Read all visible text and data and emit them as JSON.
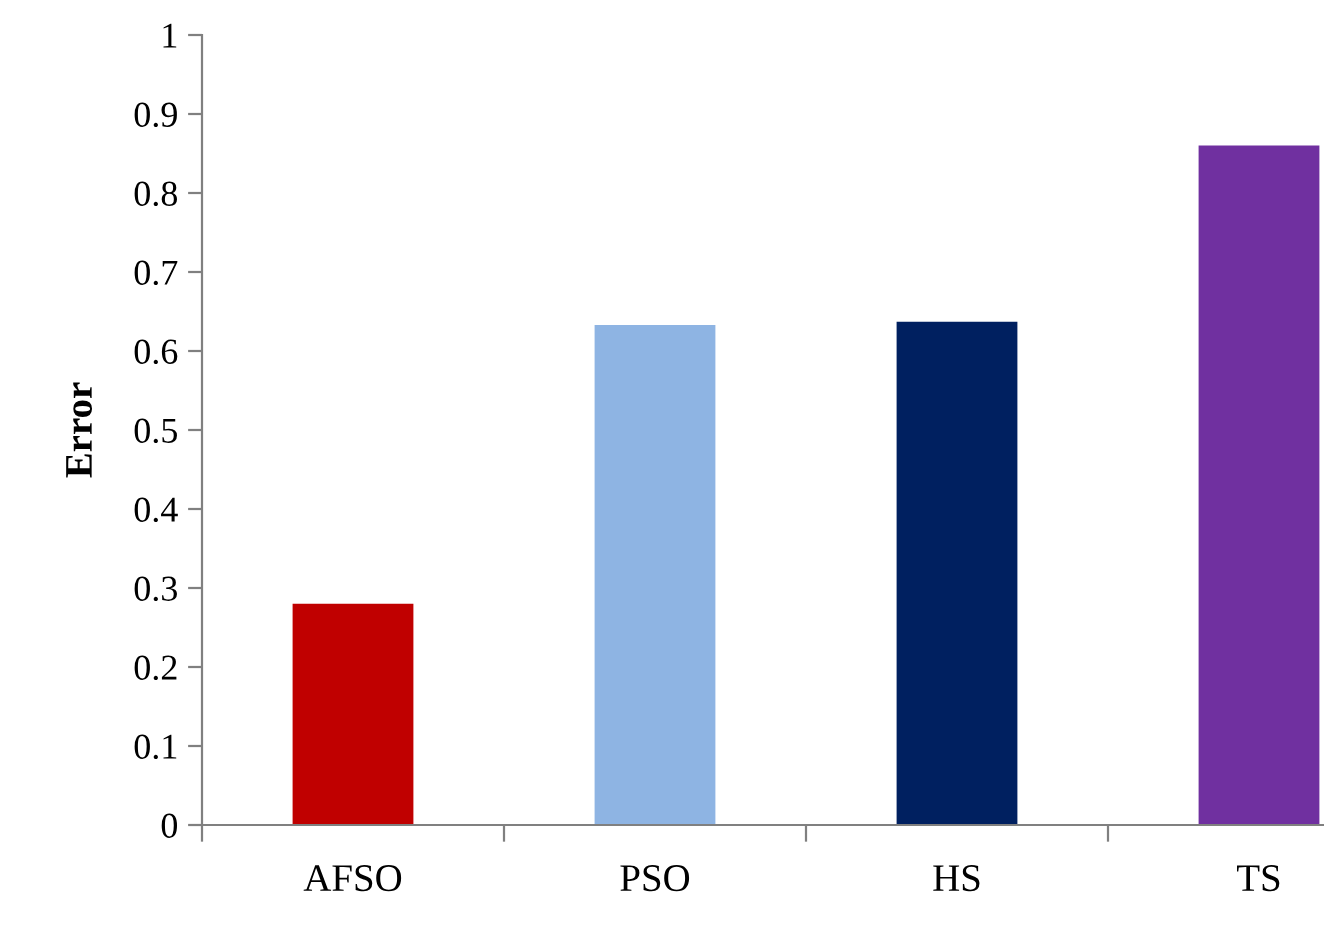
{
  "chart_data": {
    "type": "bar",
    "ylabel": "Error",
    "categories": [
      "AFSO",
      "PSO",
      "HS",
      "TS"
    ],
    "values": [
      0.28,
      0.633,
      0.637,
      0.86
    ],
    "colors": [
      "#c00000",
      "#8eb4e3",
      "#002060",
      "#7030a0"
    ],
    "ylim": [
      0,
      1
    ],
    "yticks": [
      0,
      0.1,
      0.2,
      0.3,
      0.4,
      0.5,
      0.6,
      0.7,
      0.8,
      0.9,
      1
    ],
    "grid": false
  }
}
